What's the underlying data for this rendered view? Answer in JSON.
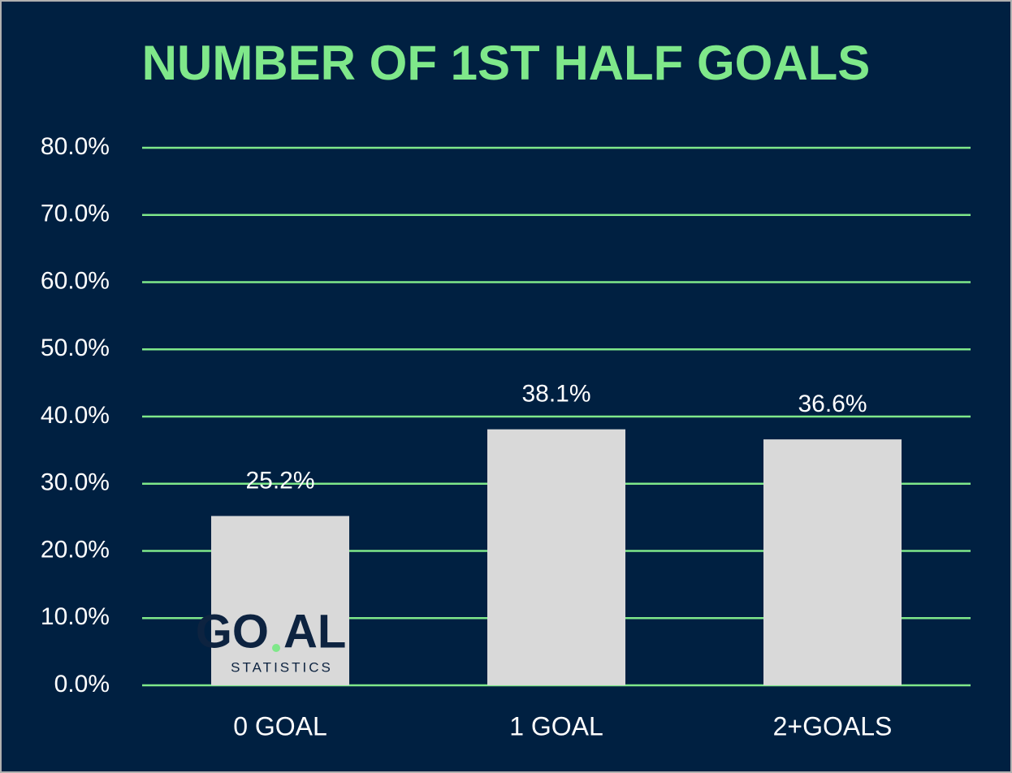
{
  "chart_data": {
    "type": "bar",
    "title": "NUMBER OF 1ST HALF GOALS",
    "categories": [
      "0 GOAL",
      "1 GOAL",
      "2+GOALS"
    ],
    "values": [
      25.2,
      38.1,
      36.6
    ],
    "value_labels": [
      "25.2%",
      "38.1%",
      "36.6%"
    ],
    "color": "#d9d9d9",
    "ylim": [
      0,
      80
    ],
    "yticks": [
      {
        "value": 0,
        "label": "0.0%"
      },
      {
        "value": 10,
        "label": "10.0%"
      },
      {
        "value": 20,
        "label": "20.0%"
      },
      {
        "value": 30,
        "label": "30.0%"
      },
      {
        "value": 40,
        "label": "40.0%"
      },
      {
        "value": 50,
        "label": "50.0%"
      },
      {
        "value": 60,
        "label": "60.0%"
      },
      {
        "value": 70,
        "label": "70.0%"
      },
      {
        "value": 80,
        "label": "80.0%"
      }
    ],
    "grid": true,
    "grid_color": "#7fe88a",
    "logo": {
      "left": "GO",
      "right": "AL",
      "tagline": "STATISTICS"
    }
  }
}
